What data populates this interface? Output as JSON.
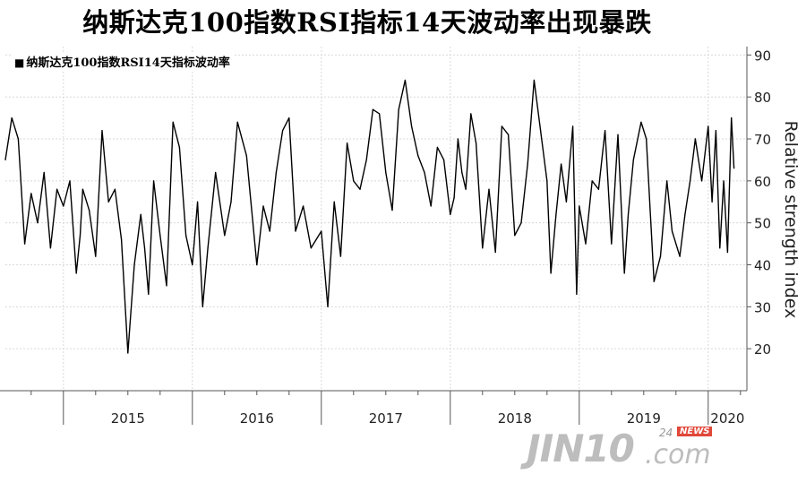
{
  "title": "纳斯达克100指数RSI指标14天波动率出现暴跌",
  "watermark": {
    "brand": "JIN10",
    "suffix": ".com",
    "tag_num": "24",
    "tag_news": "NEWS"
  },
  "colors": {
    "line": "#000000",
    "grid": "#d8d8d8",
    "axis": "#555555"
  },
  "chart_data": {
    "type": "line",
    "title": "纳斯达克100指数RSI14天指标波动率",
    "legend": [
      "纳斯达克100指数RSI14天指标波动率"
    ],
    "legend_position": "top-left",
    "ylabel": "Relative strength index",
    "y_axis_side": "right",
    "ylim": [
      10,
      92
    ],
    "yticks": [
      20,
      30,
      40,
      50,
      60,
      70,
      80,
      90
    ],
    "xlim": [
      2014.55,
      2020.3
    ],
    "x_year_ticks": [
      2015,
      2016,
      2017,
      2018,
      2019,
      2020
    ],
    "grid": true,
    "series": [
      {
        "name": "纳斯达克100指数RSI14天指标波动率",
        "x": [
          2014.55,
          2014.6,
          2014.65,
          2014.7,
          2014.75,
          2014.8,
          2014.85,
          2014.9,
          2014.95,
          2015.0,
          2015.05,
          2015.1,
          2015.13,
          2015.15,
          2015.2,
          2015.25,
          2015.3,
          2015.35,
          2015.4,
          2015.45,
          2015.5,
          2015.55,
          2015.6,
          2015.63,
          2015.66,
          2015.7,
          2015.75,
          2015.8,
          2015.85,
          2015.9,
          2015.95,
          2016.0,
          2016.04,
          2016.08,
          2016.12,
          2016.18,
          2016.25,
          2016.3,
          2016.35,
          2016.42,
          2016.5,
          2016.55,
          2016.6,
          2016.65,
          2016.7,
          2016.75,
          2016.8,
          2016.86,
          2016.92,
          2017.0,
          2017.05,
          2017.1,
          2017.15,
          2017.2,
          2017.25,
          2017.3,
          2017.35,
          2017.4,
          2017.45,
          2017.5,
          2017.55,
          2017.6,
          2017.65,
          2017.7,
          2017.75,
          2017.8,
          2017.85,
          2017.9,
          2017.95,
          2018.0,
          2018.03,
          2018.06,
          2018.09,
          2018.12,
          2018.16,
          2018.2,
          2018.25,
          2018.3,
          2018.35,
          2018.4,
          2018.45,
          2018.5,
          2018.55,
          2018.6,
          2018.65,
          2018.7,
          2018.75,
          2018.78,
          2018.82,
          2018.86,
          2018.9,
          2018.95,
          2018.98,
          2019.0,
          2019.05,
          2019.1,
          2019.15,
          2019.2,
          2019.25,
          2019.3,
          2019.35,
          2019.38,
          2019.42,
          2019.48,
          2019.52,
          2019.58,
          2019.63,
          2019.68,
          2019.72,
          2019.78,
          2019.82,
          2019.86,
          2019.9,
          2019.95,
          2020.0,
          2020.03,
          2020.06,
          2020.09,
          2020.12,
          2020.15,
          2020.18,
          2020.2
        ],
        "values": [
          65,
          75,
          70,
          45,
          57,
          50,
          62,
          44,
          58,
          54,
          60,
          38,
          47,
          58,
          53,
          42,
          72,
          55,
          58,
          46,
          19,
          40,
          52,
          44,
          33,
          60,
          47,
          35,
          74,
          68,
          47,
          40,
          55,
          30,
          44,
          62,
          47,
          55,
          74,
          66,
          40,
          54,
          48,
          62,
          72,
          75,
          48,
          54,
          44,
          48,
          30,
          55,
          42,
          69,
          60,
          58,
          65,
          77,
          76,
          62,
          53,
          77,
          84,
          73,
          66,
          62,
          54,
          68,
          65,
          52,
          56,
          70,
          62,
          58,
          76,
          69,
          44,
          58,
          43,
          73,
          71,
          47,
          50,
          64,
          84,
          72,
          60,
          38,
          52,
          64,
          55,
          73,
          33,
          54,
          45,
          60,
          58,
          72,
          45,
          71,
          38,
          52,
          65,
          74,
          70,
          36,
          42,
          60,
          48,
          42,
          52,
          60,
          70,
          60,
          73,
          55,
          72,
          44,
          60,
          43,
          75,
          63
        ]
      }
    ]
  }
}
